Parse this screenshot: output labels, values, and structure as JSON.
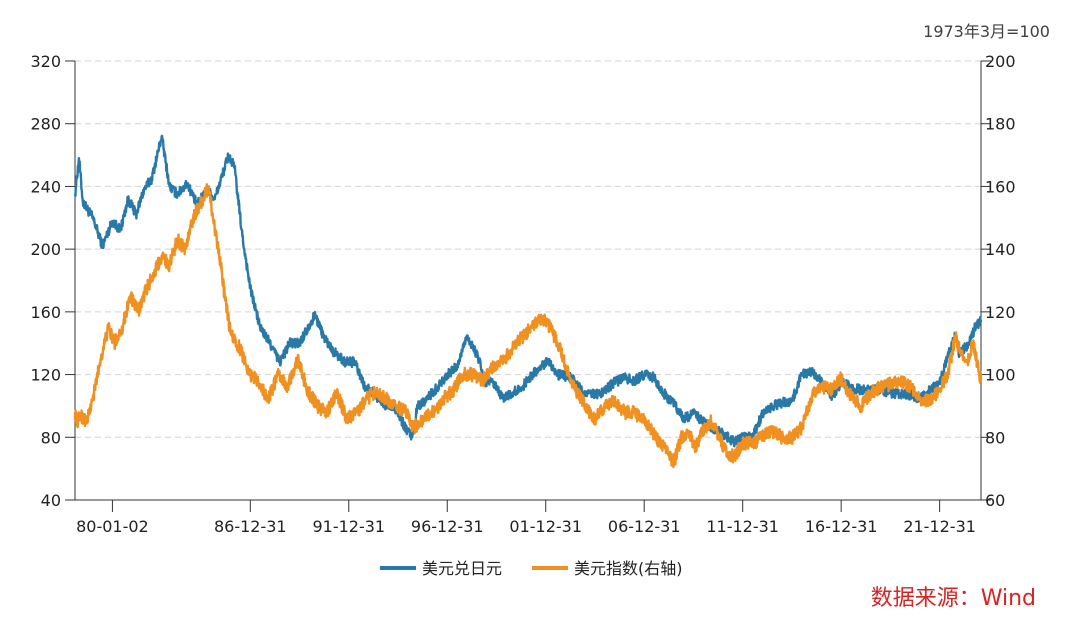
{
  "chart_data": {
    "type": "line",
    "note": "1973年3月=100",
    "source": "数据来源：Wind",
    "x_tick_labels": [
      "80-01-02",
      "86-12-31",
      "91-12-31",
      "96-12-31",
      "01-12-31",
      "06-12-31",
      "11-12-31",
      "16-12-31",
      "21-12-31"
    ],
    "x_tick_years": [
      1980.0,
      1987.0,
      1992.0,
      1997.0,
      2002.0,
      2007.0,
      2012.0,
      2017.0,
      2022.0
    ],
    "x_range": [
      1978.1,
      2024.1
    ],
    "left_axis": {
      "ticks": [
        "40",
        "80",
        "120",
        "160",
        "200",
        "240",
        "280",
        "320"
      ],
      "range": [
        40,
        320
      ]
    },
    "right_axis": {
      "ticks": [
        "60",
        "80",
        "100",
        "120",
        "140",
        "160",
        "180",
        "200"
      ],
      "range": [
        60,
        200
      ]
    },
    "series": [
      {
        "name": "美元兑日元",
        "axis": "left",
        "color": "#2878a8",
        "x": [
          1978.1,
          1978.3,
          1978.5,
          1979.0,
          1979.5,
          1980.0,
          1980.4,
          1980.8,
          1981.2,
          1981.6,
          1982.0,
          1982.5,
          1982.9,
          1983.3,
          1983.8,
          1984.3,
          1984.8,
          1985.2,
          1985.6,
          1985.9,
          1986.2,
          1986.6,
          1987.0,
          1987.5,
          1988.0,
          1988.5,
          1989.0,
          1989.5,
          1990.0,
          1990.3,
          1990.7,
          1991.2,
          1991.8,
          1992.3,
          1992.8,
          1993.3,
          1993.8,
          1994.3,
          1994.8,
          1995.2,
          1995.5,
          1996.0,
          1996.5,
          1997.0,
          1997.5,
          1998.0,
          1998.6,
          1998.9,
          1999.3,
          1999.8,
          2000.3,
          2000.8,
          2001.3,
          2001.8,
          2002.1,
          2002.6,
          2003.3,
          2004.0,
          2004.8,
          2005.5,
          2006.0,
          2006.5,
          2007.0,
          2007.5,
          2008.0,
          2008.6,
          2009.0,
          2009.5,
          2010.0,
          2010.5,
          2011.0,
          2011.6,
          2012.0,
          2012.5,
          2013.0,
          2013.5,
          2014.0,
          2014.5,
          2015.0,
          2015.5,
          2016.0,
          2016.5,
          2017.0,
          2017.5,
          2018.0,
          2018.5,
          2019.0,
          2019.5,
          2020.0,
          2020.5,
          2021.0,
          2021.5,
          2022.0,
          2022.5,
          2022.8,
          2023.0,
          2023.5,
          2023.8,
          2024.1
        ],
        "values": [
          235,
          258,
          230,
          220,
          202,
          218,
          212,
          232,
          222,
          238,
          245,
          272,
          240,
          235,
          242,
          228,
          238,
          232,
          248,
          260,
          252,
          208,
          175,
          150,
          140,
          128,
          140,
          140,
          152,
          158,
          145,
          135,
          128,
          128,
          112,
          108,
          100,
          100,
          88,
          80,
          100,
          105,
          112,
          120,
          125,
          145,
          130,
          115,
          115,
          105,
          108,
          112,
          120,
          125,
          130,
          120,
          118,
          107,
          108,
          115,
          118,
          116,
          120,
          118,
          108,
          100,
          92,
          95,
          90,
          86,
          82,
          77,
          80,
          80,
          95,
          100,
          102,
          103,
          120,
          122,
          115,
          105,
          115,
          112,
          110,
          110,
          110,
          108,
          108,
          107,
          105,
          110,
          115,
          135,
          145,
          133,
          140,
          150,
          155
        ]
      },
      {
        "name": "美元指数(右轴)",
        "axis": "right",
        "color": "#f09020",
        "x": [
          1978.1,
          1978.2,
          1978.4,
          1978.7,
          1979.0,
          1979.4,
          1979.8,
          1980.1,
          1980.5,
          1980.9,
          1981.3,
          1981.7,
          1982.1,
          1982.5,
          1982.9,
          1983.3,
          1983.7,
          1984.1,
          1984.5,
          1984.9,
          1985.1,
          1985.4,
          1985.7,
          1986.0,
          1986.5,
          1987.0,
          1987.4,
          1987.9,
          1988.4,
          1988.9,
          1989.4,
          1989.9,
          1990.4,
          1990.9,
          1991.4,
          1991.9,
          1992.4,
          1992.9,
          1993.4,
          1993.9,
          1994.4,
          1994.9,
          1995.3,
          1995.8,
          1996.3,
          1996.8,
          1997.3,
          1997.8,
          1998.3,
          1998.8,
          1999.3,
          1999.8,
          2000.3,
          2000.8,
          2001.3,
          2001.8,
          2002.2,
          2002.6,
          2003.0,
          2003.5,
          2004.0,
          2004.5,
          2005.0,
          2005.5,
          2006.0,
          2006.5,
          2007.0,
          2007.4,
          2007.8,
          2008.2,
          2008.5,
          2008.9,
          2009.2,
          2009.6,
          2010.0,
          2010.4,
          2010.8,
          2011.2,
          2011.6,
          2012.0,
          2012.5,
          2013.0,
          2013.5,
          2014.0,
          2014.5,
          2015.0,
          2015.5,
          2016.0,
          2016.5,
          2017.0,
          2017.5,
          2018.0,
          2018.5,
          2019.0,
          2019.5,
          2020.0,
          2020.5,
          2021.0,
          2021.5,
          2022.0,
          2022.4,
          2022.8,
          2023.0,
          2023.4,
          2023.7,
          2024.1
        ],
        "values": [
          88,
          85,
          87,
          85,
          92,
          105,
          115,
          110,
          115,
          125,
          120,
          127,
          132,
          138,
          135,
          143,
          140,
          150,
          155,
          160,
          150,
          140,
          125,
          113,
          108,
          100,
          98,
          92,
          100,
          96,
          105,
          95,
          90,
          88,
          94,
          86,
          88,
          92,
          95,
          92,
          90,
          88,
          83,
          86,
          88,
          92,
          95,
          100,
          100,
          98,
          102,
          104,
          108,
          112,
          115,
          118,
          115,
          110,
          103,
          95,
          90,
          86,
          90,
          92,
          88,
          88,
          85,
          82,
          78,
          75,
          72,
          80,
          82,
          77,
          82,
          85,
          80,
          75,
          74,
          78,
          78,
          80,
          82,
          80,
          80,
          83,
          93,
          96,
          95,
          99,
          93,
          90,
          94,
          96,
          97,
          98,
          96,
          92,
          92,
          95,
          100,
          112,
          108,
          104,
          110,
          98
        ]
      }
    ]
  }
}
